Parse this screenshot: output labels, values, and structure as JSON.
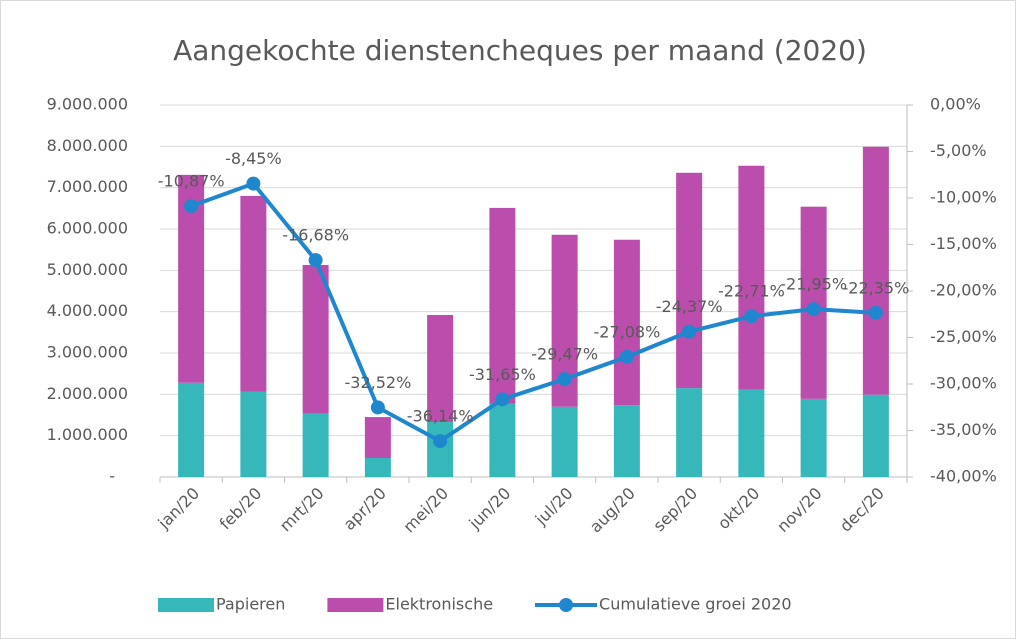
{
  "chart_data": {
    "type": "bar",
    "title": "Aangekochte dienstencheques per maand (2020)",
    "categories": [
      "jan/20",
      "feb/20",
      "mrt/20",
      "apr/20",
      "mei/20",
      "jun/20",
      "jul/20",
      "aug/20",
      "sep/20",
      "okt/20",
      "nov/20",
      "dec/20"
    ],
    "stacked": true,
    "series": [
      {
        "name": "Papieren",
        "color": "#36b8ba",
        "values": [
          2280000,
          2060000,
          1530000,
          460000,
          1330000,
          1770000,
          1700000,
          1740000,
          2150000,
          2110000,
          1890000,
          1990000
        ]
      },
      {
        "name": "Elektronische",
        "color": "#bb4ead",
        "values": [
          5030000,
          4740000,
          3600000,
          990000,
          2590000,
          4740000,
          4160000,
          4000000,
          5210000,
          5420000,
          4650000,
          6000000
        ]
      },
      {
        "name": "Cumulatieve groei 2020",
        "color": "#1f87ce",
        "type": "line",
        "axis": "y2",
        "values": [
          -10.87,
          -8.45,
          -16.68,
          -32.52,
          -36.14,
          -31.65,
          -29.47,
          -27.08,
          -24.37,
          -22.71,
          -21.95,
          -22.35
        ],
        "value_labels": [
          "-10,87%",
          "-8,45%",
          "-16,68%",
          "-32,52%",
          "-36,14%",
          "-31,65%",
          "-29,47%",
          "-27,08%",
          "-24,37%",
          "-22,71%",
          "-21,95%",
          "-22,35%"
        ]
      }
    ],
    "ylim": [
      0,
      9000000
    ],
    "yticks": [
      {
        "value": 0,
        "label": "-"
      },
      {
        "value": 1000000,
        "label": "1.000.000"
      },
      {
        "value": 2000000,
        "label": "2.000.000"
      },
      {
        "value": 3000000,
        "label": "3.000.000"
      },
      {
        "value": 4000000,
        "label": "4.000.000"
      },
      {
        "value": 5000000,
        "label": "5.000.000"
      },
      {
        "value": 6000000,
        "label": "6.000.000"
      },
      {
        "value": 7000000,
        "label": "7.000.000"
      },
      {
        "value": 8000000,
        "label": "8.000.000"
      },
      {
        "value": 9000000,
        "label": "9.000.000"
      }
    ],
    "y2lim": [
      -40,
      0
    ],
    "y2ticks": [
      {
        "value": 0,
        "label": "0,00%"
      },
      {
        "value": -5,
        "label": "-5,00%"
      },
      {
        "value": -10,
        "label": "-10,00%"
      },
      {
        "value": -15,
        "label": "-15,00%"
      },
      {
        "value": -20,
        "label": "-20,00%"
      },
      {
        "value": -25,
        "label": "-25,00%"
      },
      {
        "value": -30,
        "label": "-30,00%"
      },
      {
        "value": -35,
        "label": "-35,00%"
      },
      {
        "value": -40,
        "label": "-40,00%"
      }
    ],
    "legend": "bottom"
  }
}
